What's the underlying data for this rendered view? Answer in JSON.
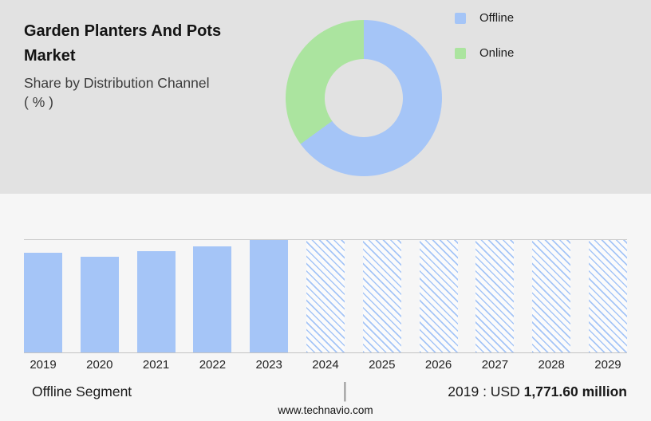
{
  "colors": {
    "header_bg": "#e2e2e2",
    "page_bg": "#f6f6f6",
    "offline_blue": "#a5c5f7",
    "online_green": "#abe49f",
    "axis_line": "#cdcdcd"
  },
  "header": {
    "title": "Garden Planters And Pots Market",
    "subtitle": "Share by Distribution Channel",
    "subtitle_unit": "( % )"
  },
  "chart_data": [
    {
      "type": "pie",
      "variant": "donut",
      "title": "Share by Distribution Channel ( % )",
      "labels": [
        "Offline",
        "Online"
      ],
      "values": [
        65,
        35
      ],
      "values_are_estimated_from_pixels": true,
      "colors": [
        "#a5c5f7",
        "#abe49f"
      ],
      "legend_position": "right"
    },
    {
      "type": "bar",
      "title": "Offline Segment size by year",
      "categories": [
        "2019",
        "2020",
        "2021",
        "2022",
        "2023",
        "2024",
        "2025",
        "2026",
        "2027",
        "2028",
        "2029"
      ],
      "series": [
        {
          "name": "Offline segment",
          "heights_pct": [
            89,
            85,
            90,
            94,
            100,
            100,
            100,
            100,
            100,
            100,
            100
          ],
          "heights_note": "y-axis has no tick labels; bar heights estimated as % of plot height"
        }
      ],
      "known_values": {
        "2019": "USD 1,771.60 million"
      },
      "forecast_start_index": 5,
      "forecast_style": "hatched",
      "grid": false,
      "y_axis_shown": false,
      "xlabel": "",
      "ylabel": ""
    }
  ],
  "summary": {
    "segment_label": "Offline Segment",
    "divider": "|",
    "value_label": "2019 : USD",
    "value_bold": "1,771.60 million"
  },
  "footer": {
    "website": "www.technavio.com"
  }
}
